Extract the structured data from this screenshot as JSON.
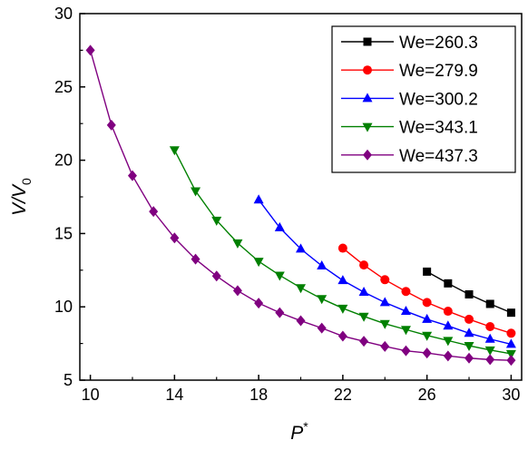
{
  "chart_data": {
    "type": "line",
    "title": "",
    "xlabel": "P",
    "xlabel_sup": "*",
    "ylabel": "V/V",
    "ylabel_sub": "0",
    "xlim": [
      9.5,
      30.5
    ],
    "ylim": [
      5,
      30
    ],
    "xticks": [
      10,
      14,
      18,
      22,
      26,
      30
    ],
    "yticks": [
      5,
      10,
      15,
      20,
      25,
      30
    ],
    "grid": false,
    "legend_position": "top-right",
    "series": [
      {
        "name": "We=260.3",
        "color": "#000000",
        "marker": "square",
        "x": [
          26,
          27,
          28,
          29,
          30
        ],
        "y": [
          12.4,
          11.6,
          10.85,
          10.2,
          9.6
        ]
      },
      {
        "name": "We=279.9",
        "color": "#ff0000",
        "marker": "circle",
        "x": [
          22,
          23,
          24,
          25,
          26,
          27,
          28,
          29,
          30
        ],
        "y": [
          14.0,
          12.85,
          11.85,
          11.05,
          10.3,
          9.7,
          9.15,
          8.65,
          8.2
        ]
      },
      {
        "name": "We=300.2",
        "color": "#0000ff",
        "marker": "triangle-up",
        "x": [
          18,
          19,
          20,
          21,
          22,
          23,
          24,
          25,
          26,
          27,
          28,
          29,
          30
        ],
        "y": [
          17.3,
          15.4,
          13.95,
          12.8,
          11.8,
          11.0,
          10.3,
          9.7,
          9.15,
          8.7,
          8.2,
          7.8,
          7.45
        ]
      },
      {
        "name": "We=343.1",
        "color": "#008000",
        "marker": "triangle-down",
        "x": [
          14,
          15,
          16,
          17,
          18,
          19,
          20,
          21,
          22,
          23,
          24,
          25,
          26,
          27,
          28,
          29,
          30
        ],
        "y": [
          20.7,
          17.9,
          15.9,
          14.35,
          13.1,
          12.15,
          11.3,
          10.55,
          9.9,
          9.35,
          8.85,
          8.45,
          8.05,
          7.7,
          7.35,
          7.05,
          6.8
        ]
      },
      {
        "name": "We=437.3",
        "color": "#800080",
        "marker": "diamond",
        "x": [
          10,
          11,
          12,
          13,
          14,
          15,
          16,
          17,
          18,
          19,
          20,
          21,
          22,
          23,
          24,
          25,
          26,
          27,
          28,
          29,
          30
        ],
        "y": [
          27.5,
          22.4,
          18.95,
          16.5,
          14.7,
          13.25,
          12.1,
          11.1,
          10.25,
          9.6,
          9.05,
          8.55,
          8.0,
          7.65,
          7.3,
          7.0,
          6.85,
          6.65,
          6.5,
          6.4,
          6.35
        ]
      }
    ]
  }
}
